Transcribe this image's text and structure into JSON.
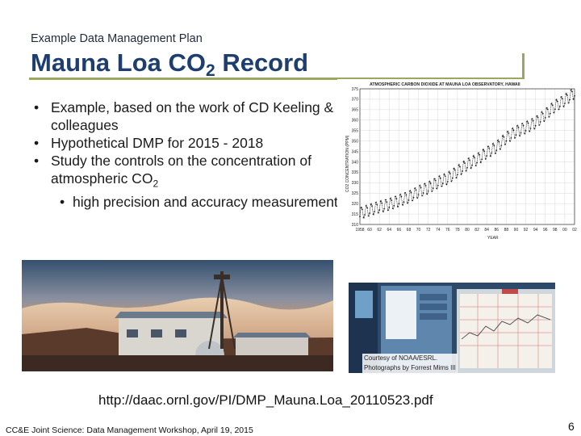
{
  "slide": {
    "kicker": "Example Data Management Plan",
    "title_main": "Mauna Loa CO",
    "title_sub": "2",
    "title_end": " Record",
    "bullets": [
      {
        "text": "Example, based on the work of CD Keeling & colleagues"
      },
      {
        "text": "Hypothetical DMP for 2015 - 2018"
      },
      {
        "text": "Study the controls on the concentration of atmospheric CO",
        "sub": "2"
      }
    ],
    "sub_bullet": "high precision and accuracy measurements",
    "bullet_symbol": "•",
    "url": "http://daac.ornl.gov/PI/DMP_Mauna.Loa_20110523.pdf",
    "footer": "CC&E Joint Science:  Data Management Workshop, April 19, 2015",
    "page_number": "6"
  },
  "photo_credit": {
    "line1": "Courtesy of NOAA/ESRL.",
    "line2": "Photographs by Forrest Mims III"
  },
  "chart_data": {
    "type": "line",
    "title": "ATMOSPHERIC CARBON DIOXIDE AT MAUNA LOA OBSERVATORY, HAWAII",
    "xlabel": "YEAR",
    "ylabel": "CO2 CONCENTRATION (PPM)",
    "xlim": [
      1958,
      2002
    ],
    "ylim": [
      310,
      375
    ],
    "x_ticks": [
      "1958",
      "60",
      "62",
      "64",
      "66",
      "68",
      "70",
      "72",
      "74",
      "76",
      "78",
      "80",
      "82",
      "84",
      "86",
      "88",
      "90",
      "92",
      "94",
      "96",
      "98",
      "00",
      "02"
    ],
    "y_ticks": [
      310,
      315,
      320,
      325,
      330,
      335,
      340,
      345,
      350,
      355,
      360,
      365,
      370,
      375
    ],
    "series": [
      {
        "x": [
          1958,
          1960,
          1962,
          1964,
          1966,
          1968,
          1970,
          1972,
          1974,
          1976,
          1978,
          1980,
          1982,
          1984,
          1986,
          1988,
          1990,
          1992,
          1994,
          1996,
          1998,
          2000,
          2002
        ],
        "values": [
          315.3,
          316.9,
          318.4,
          319.6,
          321.4,
          323.1,
          325.7,
          327.5,
          330.2,
          332.1,
          335.4,
          338.7,
          341.1,
          344.4,
          347.0,
          351.5,
          354.4,
          356.4,
          358.8,
          362.6,
          366.7,
          369.5,
          373.1
        ]
      }
    ],
    "seasonal_amplitude": 6,
    "grid": true,
    "colors": {
      "line": "#222222",
      "axis": "#333333",
      "grid": "#cfcfcf"
    }
  },
  "photos": {
    "left_label": "observatory-photo",
    "right_label": "instrument-photo"
  }
}
